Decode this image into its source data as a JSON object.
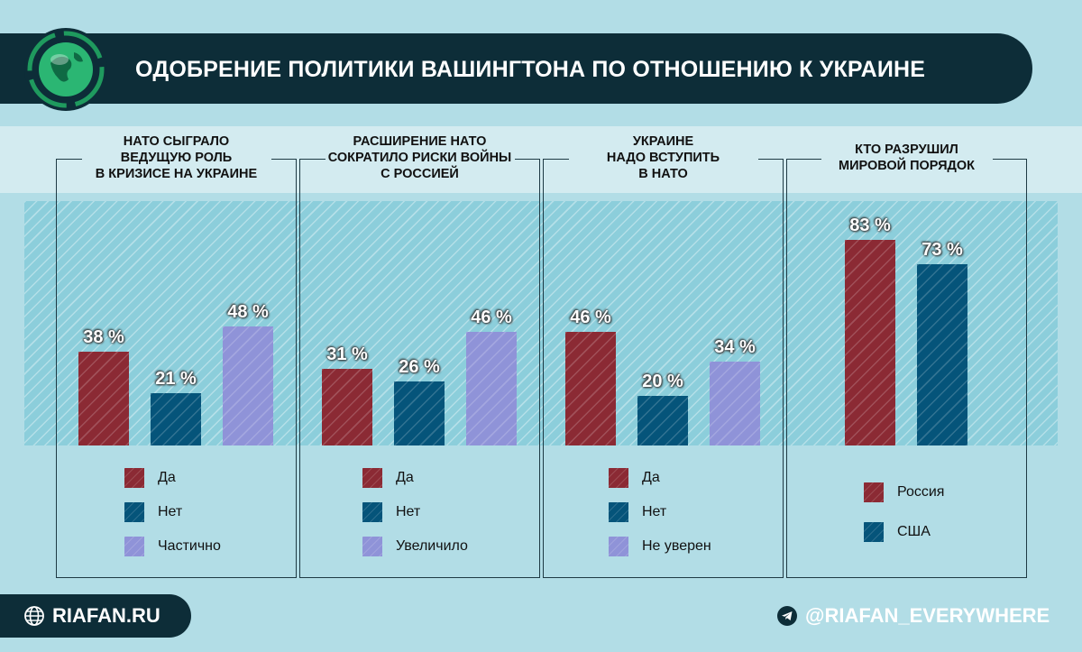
{
  "title": "ОДОБРЕНИЕ ПОЛИТИКИ ВАШИНГТОНА ПО ОТНОШЕНИЮ К УКРАИНЕ",
  "footer": {
    "site": "RIAFAN.RU",
    "telegram": "@RIAFAN_EVERYWHERE"
  },
  "icons": {
    "logo": "globe-logo-icon",
    "site": "globe-icon",
    "telegram": "telegram-icon"
  },
  "colors": {
    "red": "#8b2a34",
    "blue": "#05547a",
    "lavender": "#8f93d8",
    "dark": "#0d2d38"
  },
  "chart_data": [
    {
      "type": "bar",
      "title": "НАТО СЫГРАЛО ВЕДУЩУЮ РОЛЬ В КРИЗИСЕ НА УКРАИНЕ",
      "title_lines": [
        "НАТО СЫГРАЛО",
        "ВЕДУЩУЮ РОЛЬ",
        "В КРИЗИСЕ НА УКРАИНЕ"
      ],
      "categories": [
        "Да",
        "Нет",
        "Частично"
      ],
      "values": [
        38,
        21,
        48
      ],
      "value_labels": [
        "38 %",
        "21 %",
        "48 %"
      ],
      "colors": [
        "#8b2a34",
        "#05547a",
        "#8f93d8"
      ]
    },
    {
      "type": "bar",
      "title": "РАСШИРЕНИЕ НАТО СОКРАТИЛО РИСКИ ВОЙНЫ С РОССИЕЙ",
      "title_lines": [
        "РАСШИРЕНИЕ НАТО",
        "СОКРАТИЛО РИСКИ ВОЙНЫ",
        "С РОССИЕЙ"
      ],
      "categories": [
        "Да",
        "Нет",
        "Увеличило"
      ],
      "values": [
        31,
        26,
        46
      ],
      "value_labels": [
        "31 %",
        "26 %",
        "46 %"
      ],
      "colors": [
        "#8b2a34",
        "#05547a",
        "#8f93d8"
      ]
    },
    {
      "type": "bar",
      "title": "УКРАИНЕ НАДО ВСТУПИТЬ В НАТО",
      "title_lines": [
        "УКРАИНЕ",
        "НАДО ВСТУПИТЬ",
        "В НАТО"
      ],
      "categories": [
        "Да",
        "Нет",
        "Не уверен"
      ],
      "values": [
        46,
        20,
        34
      ],
      "value_labels": [
        "46 %",
        "20 %",
        "34 %"
      ],
      "colors": [
        "#8b2a34",
        "#05547a",
        "#8f93d8"
      ]
    },
    {
      "type": "bar",
      "title": "КТО РАЗРУШИЛ МИРОВОЙ ПОРЯДОК",
      "title_lines": [
        "КТО РАЗРУШИЛ",
        "МИРОВОЙ ПОРЯДОК"
      ],
      "categories": [
        "Россия",
        "США"
      ],
      "values": [
        83,
        73
      ],
      "value_labels": [
        "83 %",
        "73 %"
      ],
      "colors": [
        "#8b2a34",
        "#05547a"
      ]
    }
  ]
}
